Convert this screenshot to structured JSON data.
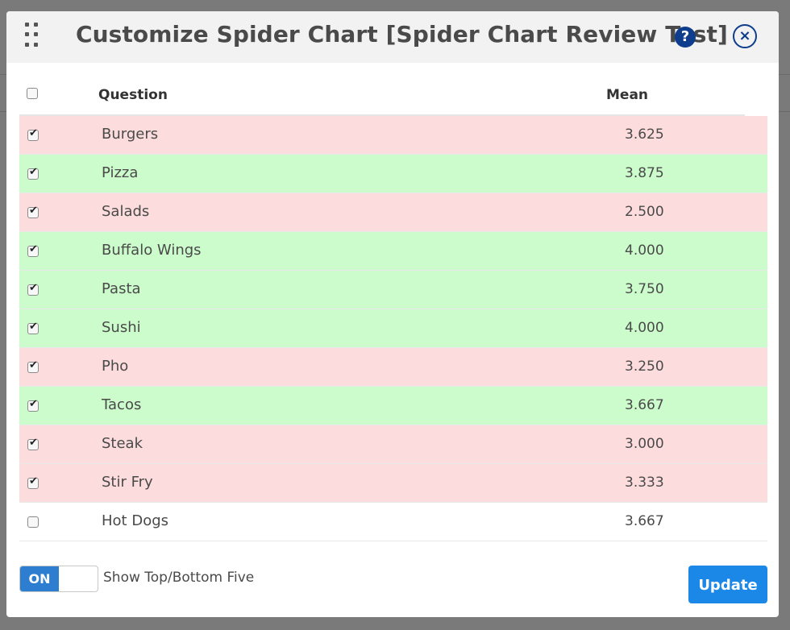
{
  "modal": {
    "title": "Customize Spider Chart [Spider Chart Review Test]",
    "help_icon": "?",
    "close_icon": "×"
  },
  "table": {
    "columns": {
      "question": "Question",
      "mean": "Mean"
    },
    "rows": [
      {
        "question": "Burgers",
        "mean": "3.625",
        "checked": true,
        "highlight": "red"
      },
      {
        "question": "Pizza",
        "mean": "3.875",
        "checked": true,
        "highlight": "green"
      },
      {
        "question": "Salads",
        "mean": "2.500",
        "checked": true,
        "highlight": "red"
      },
      {
        "question": "Buffalo Wings",
        "mean": "4.000",
        "checked": true,
        "highlight": "green"
      },
      {
        "question": "Pasta",
        "mean": "3.750",
        "checked": true,
        "highlight": "green"
      },
      {
        "question": "Sushi",
        "mean": "4.000",
        "checked": true,
        "highlight": "green"
      },
      {
        "question": "Pho",
        "mean": "3.250",
        "checked": true,
        "highlight": "red"
      },
      {
        "question": "Tacos",
        "mean": "3.667",
        "checked": true,
        "highlight": "green"
      },
      {
        "question": "Steak",
        "mean": "3.000",
        "checked": true,
        "highlight": "red"
      },
      {
        "question": "Stir Fry",
        "mean": "3.333",
        "checked": true,
        "highlight": "red"
      },
      {
        "question": "Hot Dogs",
        "mean": "3.667",
        "checked": false,
        "highlight": "plain"
      }
    ]
  },
  "footer": {
    "toggle_state": "ON",
    "toggle_label": "Show Top/Bottom Five",
    "update_label": "Update"
  },
  "colors": {
    "row_red": "#fcdcdc",
    "row_green": "#ccfccc",
    "accent": "#1b87e6",
    "icon_navy": "#0d3d8c"
  }
}
